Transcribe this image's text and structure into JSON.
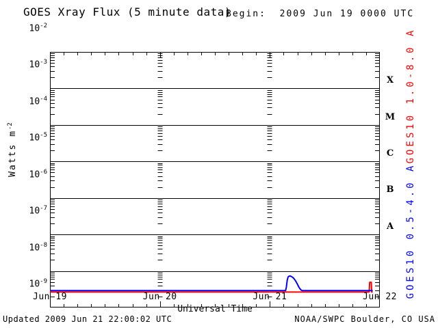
{
  "header": {
    "title": "GOES Xray Flux (5 minute data)",
    "begin_label": "Begin:  2009 Jun 19 0000 UTC"
  },
  "footer": {
    "updated_text": "Updated 2009 Jun 21 22:00:02 UTC",
    "credit_text": "NOAA/SWPC Boulder, CO USA"
  },
  "colors": {
    "axis": "#000000",
    "long_channel_red": "#ff0000",
    "short_channel_blue": "#0000ff",
    "background": "#ffffff"
  },
  "chart_data": {
    "type": "line",
    "title": "GOES Xray Flux (5 minute data)",
    "begin": "2009 Jun 19 0000 UTC",
    "xlabel": "Universal Time",
    "ylabel_base": "Watts m",
    "ylabel_exp": "-2",
    "grid": {
      "major_horizontal_gridlines": true,
      "day_minor_dash_columns": true,
      "legend_position": "right-rotated"
    },
    "x_axis": {
      "range_days": [
        0,
        3
      ],
      "tick_labels": [
        "Jun 19",
        "Jun 20",
        "Jun 21",
        "Jun 22"
      ],
      "minor_tick_hours": 3,
      "day_gridline_days": [
        1,
        2
      ]
    },
    "y_axis": {
      "scale": "log",
      "range": [
        1e-09,
        0.01
      ],
      "tick_label_base": "10",
      "tick_exponents": [
        -2,
        -3,
        -4,
        -5,
        -6,
        -7,
        -8,
        -9
      ]
    },
    "flare_class_labels": [
      {
        "label": "X",
        "center_flux": 0.000316
      },
      {
        "label": "M",
        "center_flux": 3.16e-05
      },
      {
        "label": "C",
        "center_flux": 3.16e-06
      },
      {
        "label": "B",
        "center_flux": 3.16e-07
      },
      {
        "label": "A",
        "center_flux": 3.16e-08
      }
    ],
    "right_labels": [
      {
        "text": "GOES10 1.0-8.0 A",
        "color": "#ff0000",
        "center_exp": -3.9
      },
      {
        "text": "GOES10 0.5-4.0 A",
        "color": "#0000ff",
        "center_exp": -7.62
      }
    ],
    "series": [
      {
        "name": "GOES10 1.0-8.0 A",
        "slug": "goes10-long",
        "color": "#ff0000",
        "points": [
          [
            0.0,
            2.65e-09
          ],
          [
            2.903,
            2.65e-09
          ],
          [
            2.908,
            4.9e-09
          ],
          [
            2.922,
            4.9e-09
          ],
          [
            2.926,
            2.65e-09
          ],
          [
            2.935,
            2.65e-09
          ]
        ]
      },
      {
        "name": "GOES10 0.5-4.0 A",
        "slug": "goes10-short",
        "color": "#0000ff",
        "points": [
          [
            0.0,
            2.9e-09
          ],
          [
            2.143,
            2.9e-09
          ],
          [
            2.15,
            3.6e-09
          ],
          [
            2.158,
            5.6e-09
          ],
          [
            2.166,
            6.9e-09
          ],
          [
            2.175,
            7.2e-09
          ],
          [
            2.185,
            7.3e-09
          ],
          [
            2.197,
            7e-09
          ],
          [
            2.21,
            6.6e-09
          ],
          [
            2.222,
            6e-09
          ],
          [
            2.235,
            5.3e-09
          ],
          [
            2.248,
            4.5e-09
          ],
          [
            2.26,
            3.8e-09
          ],
          [
            2.272,
            3.3e-09
          ],
          [
            2.285,
            3e-09
          ],
          [
            2.295,
            2.9e-09
          ],
          [
            2.935,
            2.9e-09
          ]
        ]
      }
    ]
  }
}
